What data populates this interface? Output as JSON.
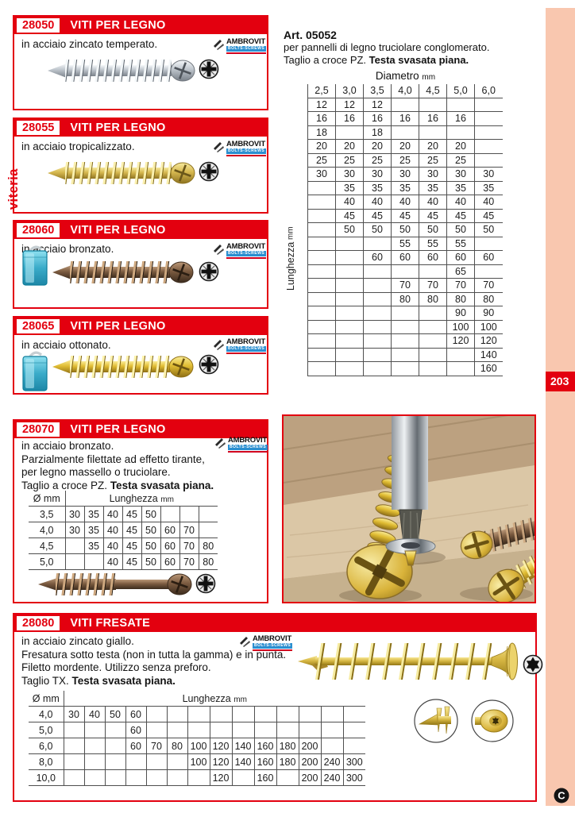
{
  "page": {
    "number": "203",
    "side_tab": "viteria"
  },
  "brand": {
    "name": "AMBROVIT",
    "tagline": "BOLTS-SCREWS"
  },
  "products": [
    {
      "code": "28050",
      "title": "VITI PER LEGNO",
      "desc": [
        "in acciaio zincato temperato."
      ]
    },
    {
      "code": "28055",
      "title": "VITI PER LEGNO",
      "desc": [
        "in acciaio tropicalizzato."
      ]
    },
    {
      "code": "28060",
      "title": "VITI PER LEGNO",
      "desc": [
        "in acciaio bronzato."
      ]
    },
    {
      "code": "28065",
      "title": "VITI PER LEGNO",
      "desc": [
        "in acciaio ottonato."
      ]
    },
    {
      "code": "28070",
      "title": "VITI PER LEGNO",
      "desc": [
        "in acciaio bronzato.",
        "Parzialmente filettate ad effetto tirante,",
        "per legno massello o truciolare."
      ],
      "tail_normal": "Taglio a croce PZ.",
      "tail_bold": "Testa svasata piana."
    },
    {
      "code": "28080",
      "title": "VITI FRESATE",
      "desc": [
        "in acciaio zincato giallo.",
        "Fresatura sotto testa (non in tutta la gamma) e in punta.",
        "Filetto mordente. Utilizzo senza preforo."
      ],
      "tail_normal": "Taglio TX.",
      "tail_bold": "Testa svasata piana."
    }
  ],
  "art_block": {
    "art": "Art. 05052",
    "line1": "per pannelli di legno truciolare conglomerato.",
    "line2_normal": "Taglio a croce PZ.",
    "line2_bold": "Testa svasata piana.",
    "diametro_label": "Diametro",
    "lunghezza_label": "Lunghezza",
    "mm_unit": "mm",
    "columns": [
      "2,5",
      "3,0",
      "3,5",
      "4,0",
      "4,5",
      "5,0",
      "6,0"
    ],
    "rows": [
      [
        "12",
        "12",
        "12",
        "",
        "",
        "",
        ""
      ],
      [
        "16",
        "16",
        "16",
        "16",
        "16",
        "16",
        ""
      ],
      [
        "18",
        "",
        "18",
        "",
        "",
        "",
        ""
      ],
      [
        "20",
        "20",
        "20",
        "20",
        "20",
        "20",
        ""
      ],
      [
        "25",
        "25",
        "25",
        "25",
        "25",
        "25",
        ""
      ],
      [
        "30",
        "30",
        "30",
        "30",
        "30",
        "30",
        "30"
      ],
      [
        "",
        "35",
        "35",
        "35",
        "35",
        "35",
        "35"
      ],
      [
        "",
        "40",
        "40",
        "40",
        "40",
        "40",
        "40"
      ],
      [
        "",
        "45",
        "45",
        "45",
        "45",
        "45",
        "45"
      ],
      [
        "",
        "50",
        "50",
        "50",
        "50",
        "50",
        "50"
      ],
      [
        "",
        "",
        "",
        "55",
        "55",
        "55",
        ""
      ],
      [
        "",
        "",
        "60",
        "60",
        "60",
        "60",
        "60"
      ],
      [
        "",
        "",
        "",
        "",
        "",
        "65",
        ""
      ],
      [
        "",
        "",
        "",
        "70",
        "70",
        "70",
        "70"
      ],
      [
        "",
        "",
        "",
        "80",
        "80",
        "80",
        "80"
      ],
      [
        "",
        "",
        "",
        "",
        "",
        "90",
        "90"
      ],
      [
        "",
        "",
        "",
        "",
        "",
        "100",
        "100"
      ],
      [
        "",
        "",
        "",
        "",
        "",
        "120",
        "120"
      ],
      [
        "",
        "",
        "",
        "",
        "",
        "",
        "140"
      ],
      [
        "",
        "",
        "",
        "",
        "",
        "",
        "160"
      ]
    ]
  },
  "table_28070": {
    "diam_header": "Ø mm",
    "len_label": "Lunghezza",
    "mm_unit": "mm",
    "rows": [
      [
        "3,5",
        "30",
        "35",
        "40",
        "45",
        "50",
        "",
        "",
        ""
      ],
      [
        "4,0",
        "30",
        "35",
        "40",
        "45",
        "50",
        "60",
        "70",
        ""
      ],
      [
        "4,5",
        "",
        "35",
        "40",
        "45",
        "50",
        "60",
        "70",
        "80"
      ],
      [
        "5,0",
        "",
        "",
        "40",
        "45",
        "50",
        "60",
        "70",
        "80"
      ]
    ]
  },
  "table_28080": {
    "diam_header": "Ø mm",
    "len_label": "Lunghezza",
    "mm_unit": "mm",
    "rows": [
      [
        "4,0",
        "30",
        "40",
        "50",
        "60",
        "",
        "",
        "",
        "",
        "",
        "",
        "",
        "",
        "",
        ""
      ],
      [
        "5,0",
        "",
        "",
        "",
        "60",
        "",
        "",
        "",
        "",
        "",
        "",
        "",
        "",
        "",
        ""
      ],
      [
        "6,0",
        "",
        "",
        "",
        "60",
        "70",
        "80",
        "100",
        "120",
        "140",
        "160",
        "180",
        "200",
        "",
        ""
      ],
      [
        "8,0",
        "",
        "",
        "",
        "",
        "",
        "",
        "100",
        "120",
        "140",
        "160",
        "180",
        "200",
        "240",
        "300"
      ],
      [
        "10,0",
        "",
        "",
        "",
        "",
        "",
        "",
        "",
        "120",
        "",
        "160",
        "",
        "200",
        "240",
        "300"
      ]
    ]
  },
  "colors": {
    "accent_red": "#e3000f",
    "strip_pink": "#f9c7af",
    "brand_blue": "#2b8fd0",
    "zinc": "#bcc3ca",
    "tropicalized": "#d6b84f",
    "bronze": "#7b5b40",
    "brass": "#e0bc33",
    "yellow_zinc": "#d7b743"
  }
}
